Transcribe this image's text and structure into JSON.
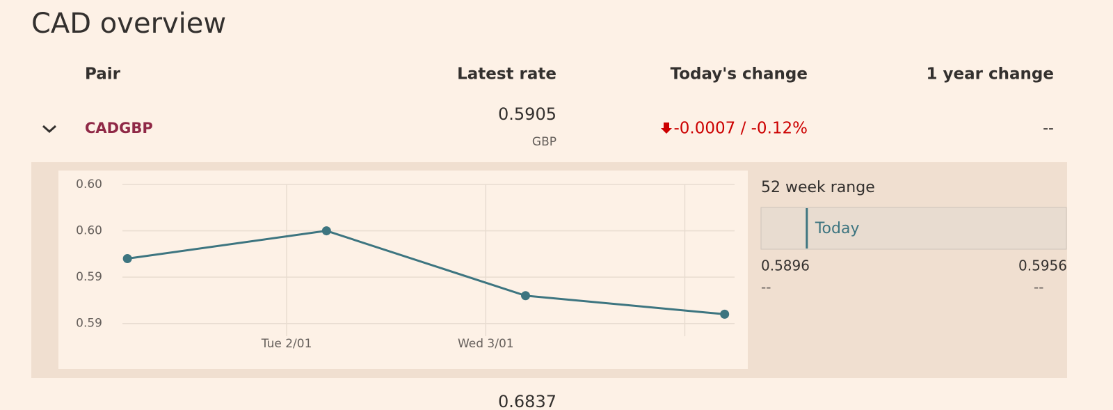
{
  "header": {
    "title": "CAD overview"
  },
  "table": {
    "columns": [
      "Pair",
      "Latest rate",
      "Today's change",
      "1 year change"
    ],
    "rows": [
      {
        "pair": "CADGBP",
        "latest_rate": 0.5905,
        "currency": "GBP",
        "todays_change": "-0.0007 / -0.12%",
        "year_change": "--"
      },
      {
        "latest_rate": 0.6837
      }
    ]
  },
  "chart_data": {
    "type": "line",
    "color": "#3d7580",
    "grid": true,
    "x": [
      1.2,
      2.2,
      3.2,
      4.2
    ],
    "values": [
      0.5952,
      0.5955,
      0.5948,
      0.5946
    ],
    "xlim": [
      1.175,
      4.25
    ],
    "xticks": [
      2,
      3,
      4
    ],
    "xtick_labels": [
      "Tue 2/01",
      "Wed 3/01",
      null
    ],
    "ylim": [
      0.5944,
      0.596
    ],
    "yticks": [
      {
        "value": 0.596,
        "label": "0.60"
      },
      {
        "value": 0.5955,
        "label": "0.60"
      },
      {
        "value": 0.595,
        "label": "0.59"
      },
      {
        "value": 0.5945,
        "label": "0.59"
      }
    ]
  },
  "range": {
    "title": "52 week range",
    "marker": "Today",
    "low": 0.5896,
    "high": 0.5956,
    "low_note": "--",
    "high_note": "--"
  }
}
